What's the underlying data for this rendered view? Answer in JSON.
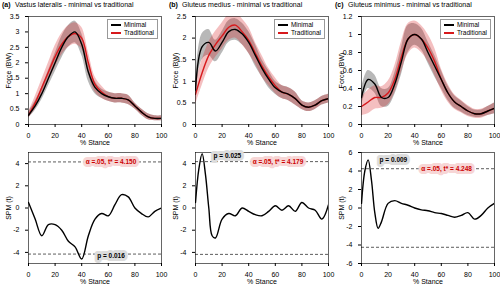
{
  "chart_data": [
    {
      "type": "line",
      "panel_label": "(a)",
      "title": "Vastus lateralis - minimal vs traditional",
      "x_label": "% Stance",
      "y_label": "Force (BW)",
      "xlim": [
        0,
        100
      ],
      "xticks": [
        0,
        20,
        40,
        60,
        80,
        100
      ],
      "ylim": [
        0,
        3.5
      ],
      "yticks": [
        0,
        0.5,
        1,
        1.5,
        2,
        2.5,
        3,
        3.5
      ],
      "legend": "top-right",
      "x": [
        0,
        5,
        10,
        15,
        20,
        25,
        30,
        35,
        40,
        45,
        50,
        55,
        60,
        65,
        70,
        75,
        80,
        85,
        90,
        95,
        100
      ],
      "series": [
        {
          "name": "Minimal",
          "color": "#000000",
          "values": [
            0.3,
            0.6,
            1.0,
            1.5,
            2.0,
            2.5,
            2.85,
            3.0,
            2.6,
            1.7,
            1.2,
            1.0,
            0.9,
            0.85,
            0.85,
            0.8,
            0.6,
            0.4,
            0.25,
            0.2,
            0.2
          ],
          "lower": [
            0.2,
            0.45,
            0.8,
            1.25,
            1.7,
            2.15,
            2.5,
            2.65,
            2.25,
            1.4,
            1.0,
            0.85,
            0.75,
            0.7,
            0.7,
            0.65,
            0.5,
            0.3,
            0.15,
            0.12,
            0.12
          ],
          "upper": [
            0.4,
            0.75,
            1.2,
            1.75,
            2.3,
            2.85,
            3.2,
            3.35,
            2.95,
            2.0,
            1.4,
            1.15,
            1.05,
            1.0,
            1.0,
            0.95,
            0.7,
            0.5,
            0.35,
            0.28,
            0.28
          ]
        },
        {
          "name": "Traditional",
          "color": "#d7191c",
          "values": [
            0.3,
            0.7,
            1.2,
            1.7,
            2.2,
            2.6,
            2.85,
            2.95,
            2.8,
            2.0,
            1.3,
            1.05,
            0.9,
            0.85,
            0.85,
            0.8,
            0.6,
            0.4,
            0.25,
            0.2,
            0.2
          ],
          "lower": [
            0.2,
            0.5,
            0.95,
            1.4,
            1.85,
            2.25,
            2.5,
            2.6,
            2.45,
            1.65,
            1.05,
            0.85,
            0.75,
            0.7,
            0.7,
            0.65,
            0.5,
            0.3,
            0.15,
            0.12,
            0.12
          ],
          "upper": [
            0.4,
            0.9,
            1.45,
            2.0,
            2.55,
            2.95,
            3.2,
            3.3,
            3.15,
            2.35,
            1.55,
            1.25,
            1.05,
            1.0,
            1.0,
            0.95,
            0.7,
            0.5,
            0.35,
            0.28,
            0.28
          ]
        }
      ]
    },
    {
      "type": "line",
      "panel_label": "(b)",
      "title": "Gluteus medius - minimal vs traditional",
      "x_label": "% Stance",
      "y_label": "Force (BW)",
      "xlim": [
        0,
        100
      ],
      "xticks": [
        0,
        20,
        40,
        60,
        80,
        100
      ],
      "ylim": [
        0,
        2.5
      ],
      "yticks": [
        0,
        0.5,
        1,
        1.5,
        2,
        2.5
      ],
      "legend": "top-right",
      "x": [
        0,
        5,
        10,
        15,
        20,
        25,
        30,
        35,
        40,
        45,
        50,
        55,
        60,
        65,
        70,
        75,
        80,
        85,
        90,
        95,
        100
      ],
      "series": [
        {
          "name": "Minimal",
          "color": "#000000",
          "values": [
            0.8,
            1.8,
            1.9,
            1.7,
            1.9,
            2.15,
            2.2,
            2.1,
            1.9,
            1.6,
            1.3,
            1.05,
            0.85,
            0.75,
            0.7,
            0.6,
            0.45,
            0.4,
            0.45,
            0.55,
            0.6
          ],
          "lower": [
            0.6,
            1.5,
            1.6,
            1.45,
            1.65,
            1.9,
            1.95,
            1.85,
            1.65,
            1.35,
            1.1,
            0.85,
            0.7,
            0.6,
            0.55,
            0.45,
            0.35,
            0.3,
            0.35,
            0.45,
            0.5
          ],
          "upper": [
            1.0,
            2.1,
            2.2,
            1.95,
            2.15,
            2.4,
            2.45,
            2.35,
            2.15,
            1.85,
            1.5,
            1.25,
            1.0,
            0.9,
            0.85,
            0.75,
            0.55,
            0.5,
            0.55,
            0.65,
            0.7
          ]
        },
        {
          "name": "Traditional",
          "color": "#d7191c",
          "values": [
            0.7,
            1.2,
            1.6,
            1.85,
            2.05,
            2.25,
            2.3,
            2.15,
            1.95,
            1.65,
            1.35,
            1.1,
            0.9,
            0.75,
            0.7,
            0.6,
            0.45,
            0.4,
            0.45,
            0.55,
            0.6
          ],
          "lower": [
            0.45,
            0.9,
            1.3,
            1.55,
            1.75,
            1.95,
            2.0,
            1.85,
            1.65,
            1.4,
            1.1,
            0.9,
            0.72,
            0.6,
            0.55,
            0.45,
            0.35,
            0.3,
            0.35,
            0.45,
            0.5
          ],
          "upper": [
            0.95,
            1.5,
            1.9,
            2.15,
            2.35,
            2.55,
            2.6,
            2.45,
            2.25,
            1.9,
            1.6,
            1.3,
            1.08,
            0.9,
            0.85,
            0.75,
            0.55,
            0.5,
            0.55,
            0.65,
            0.7
          ]
        }
      ]
    },
    {
      "type": "line",
      "panel_label": "(c)",
      "title": "Gluteus minimus - minimal vs traditional",
      "x_label": "% Stance",
      "y_label": "Force (BW)",
      "xlim": [
        0,
        100
      ],
      "xticks": [
        0,
        20,
        40,
        60,
        80,
        100
      ],
      "ylim": [
        0,
        1.2
      ],
      "yticks": [
        0,
        0.2,
        0.4,
        0.6,
        0.8,
        1,
        1.2
      ],
      "legend": "top-right",
      "x": [
        0,
        5,
        10,
        15,
        20,
        25,
        30,
        35,
        40,
        45,
        50,
        55,
        60,
        65,
        70,
        75,
        80,
        85,
        90,
        95,
        100
      ],
      "series": [
        {
          "name": "Minimal",
          "color": "#000000",
          "values": [
            0.3,
            0.5,
            0.45,
            0.3,
            0.3,
            0.45,
            0.7,
            0.95,
            1.0,
            0.95,
            0.8,
            0.65,
            0.5,
            0.35,
            0.25,
            0.2,
            0.15,
            0.12,
            0.12,
            0.15,
            0.18
          ],
          "lower": [
            0.2,
            0.4,
            0.35,
            0.2,
            0.2,
            0.33,
            0.55,
            0.8,
            0.88,
            0.83,
            0.68,
            0.53,
            0.4,
            0.27,
            0.18,
            0.14,
            0.1,
            0.08,
            0.08,
            0.1,
            0.12
          ],
          "upper": [
            0.4,
            0.6,
            0.55,
            0.4,
            0.4,
            0.57,
            0.85,
            1.1,
            1.12,
            1.07,
            0.92,
            0.77,
            0.6,
            0.43,
            0.32,
            0.26,
            0.2,
            0.16,
            0.16,
            0.2,
            0.24
          ]
        },
        {
          "name": "Traditional",
          "color": "#d7191c",
          "values": [
            0.2,
            0.25,
            0.3,
            0.3,
            0.35,
            0.5,
            0.75,
            0.95,
            1.0,
            0.95,
            0.85,
            0.7,
            0.5,
            0.35,
            0.25,
            0.2,
            0.15,
            0.12,
            0.12,
            0.15,
            0.18
          ],
          "lower": [
            0.1,
            0.12,
            0.17,
            0.18,
            0.22,
            0.35,
            0.58,
            0.78,
            0.85,
            0.8,
            0.7,
            0.55,
            0.38,
            0.25,
            0.17,
            0.13,
            0.09,
            0.07,
            0.07,
            0.1,
            0.12
          ],
          "upper": [
            0.3,
            0.38,
            0.43,
            0.42,
            0.48,
            0.65,
            0.92,
            1.12,
            1.15,
            1.1,
            1.0,
            0.85,
            0.62,
            0.45,
            0.33,
            0.27,
            0.21,
            0.17,
            0.17,
            0.2,
            0.24
          ]
        }
      ]
    },
    {
      "type": "line",
      "x_label": "% Stance",
      "y_label": "SPM (t)",
      "xlim": [
        0,
        100
      ],
      "xticks": [
        0,
        20,
        40,
        60,
        80,
        100
      ],
      "ylim": [
        -5,
        5
      ],
      "yticks": [
        -4,
        -2,
        0,
        2,
        4
      ],
      "thresholds": [
        4.15,
        -4.15
      ],
      "x": [
        0,
        5,
        10,
        15,
        20,
        25,
        30,
        35,
        40,
        45,
        50,
        55,
        60,
        65,
        70,
        75,
        80,
        85,
        90,
        95,
        100
      ],
      "series": [
        {
          "color": "#000000",
          "values": [
            0.5,
            -1.0,
            -2.5,
            -1.5,
            -1.5,
            -2.0,
            -3.0,
            -3.5,
            -4.6,
            -2.5,
            -1.0,
            -0.5,
            -0.7,
            0.3,
            1.2,
            1.0,
            0.0,
            -0.5,
            -0.8,
            -0.3,
            0.0
          ]
        }
      ],
      "annotations": [
        {
          "text": "α =.05, t* = 4.150",
          "x": 62,
          "y": 4.15,
          "color": "#cc0000"
        },
        {
          "text": "p = 0.016",
          "x": 62,
          "y": -4.3,
          "color": "#000000"
        }
      ]
    },
    {
      "type": "line",
      "x_label": "% Stance",
      "y_label": "SPM (t)",
      "xlim": [
        0,
        100
      ],
      "xticks": [
        0,
        20,
        40,
        60,
        80,
        100
      ],
      "ylim": [
        -5,
        5
      ],
      "yticks": [
        -4,
        -2,
        0,
        2,
        4
      ],
      "thresholds": [
        4.179,
        -4.179
      ],
      "x": [
        0,
        2.5,
        5,
        7.5,
        10,
        12.5,
        15,
        20,
        25,
        30,
        35,
        40,
        45,
        50,
        55,
        60,
        65,
        70,
        75,
        80,
        85,
        90,
        95,
        100
      ],
      "series": [
        {
          "color": "#000000",
          "values": [
            0.5,
            3.5,
            4.9,
            3.0,
            0.0,
            -2.5,
            -2.7,
            -1.0,
            -0.5,
            -0.7,
            0.0,
            -0.3,
            -0.6,
            -0.7,
            -0.3,
            0.2,
            -0.2,
            0.2,
            -0.3,
            0.5,
            0.0,
            -0.2,
            -1.0,
            0.3
          ]
        }
      ],
      "annotations": [
        {
          "text": "p = 0.025",
          "x": 24,
          "y": 4.7,
          "color": "#000000"
        },
        {
          "text": "α =.05, t* = 4.179",
          "x": 62,
          "y": 4.179,
          "color": "#cc0000"
        }
      ]
    },
    {
      "type": "line",
      "x_label": "% Stance",
      "y_label": "SPM (t)",
      "xlim": [
        0,
        100
      ],
      "xticks": [
        0,
        20,
        40,
        60,
        80,
        100
      ],
      "ylim": [
        -6,
        6
      ],
      "yticks": [
        -6,
        -4,
        -2,
        0,
        2,
        4,
        6
      ],
      "thresholds": [
        4.248,
        -4.248
      ],
      "x": [
        0,
        2.5,
        5,
        7.5,
        10,
        12.5,
        15,
        20,
        25,
        30,
        35,
        40,
        45,
        50,
        55,
        60,
        65,
        70,
        75,
        80,
        85,
        90,
        95,
        100
      ],
      "series": [
        {
          "color": "#000000",
          "values": [
            0.5,
            4.0,
            5.2,
            3.0,
            -0.5,
            -2.2,
            -1.5,
            0.5,
            0.8,
            0.5,
            0.3,
            0.0,
            -0.2,
            -0.3,
            -0.5,
            -0.6,
            -0.8,
            -1.0,
            -0.8,
            -0.5,
            -1.2,
            -0.8,
            0.0,
            0.5
          ]
        }
      ],
      "annotations": [
        {
          "text": "p = 0.009",
          "x": 24,
          "y": 5.2,
          "color": "#000000"
        },
        {
          "text": "α =.05, t* = 4.248",
          "x": 64,
          "y": 4.248,
          "color": "#cc0000"
        }
      ]
    }
  ]
}
